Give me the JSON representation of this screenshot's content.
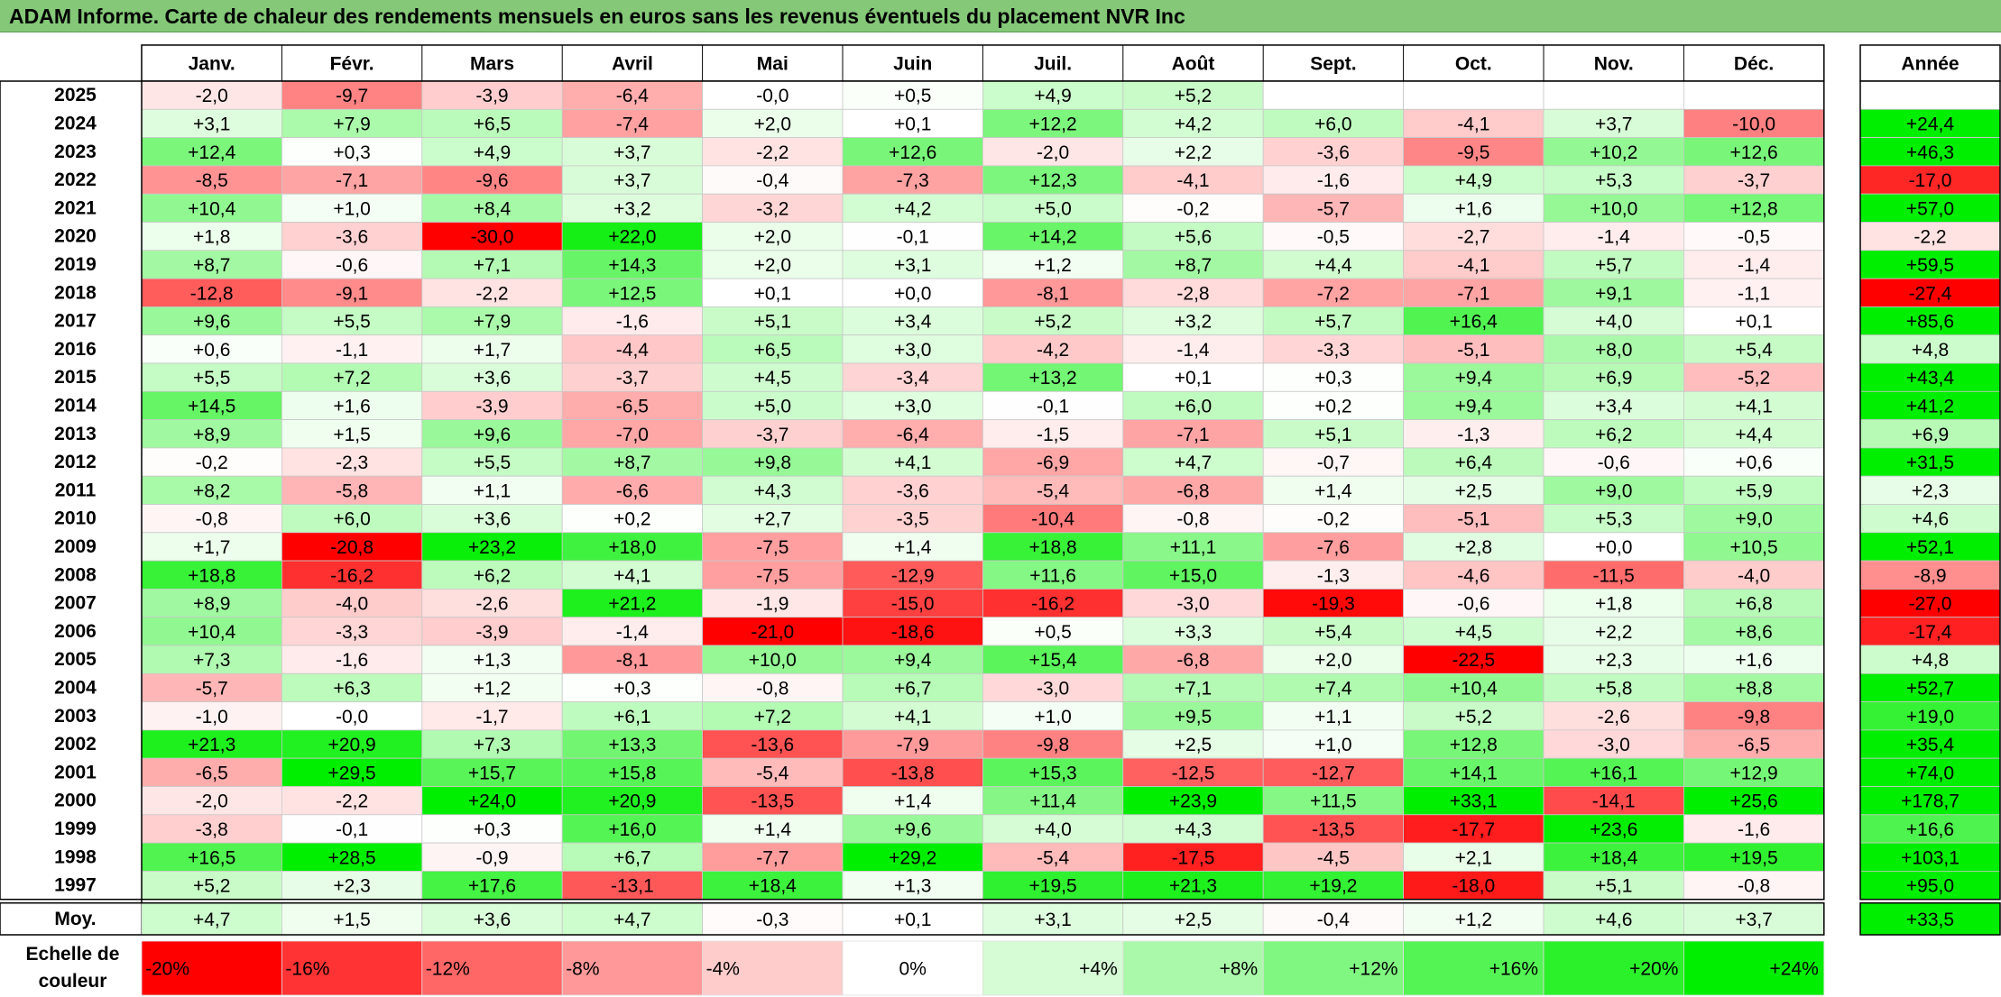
{
  "title": "ADAM Informe. Carte de chaleur des rendements mensuels en euros sans les revenus éventuels du placement NVR Inc",
  "chart_data": {
    "type": "heatmap",
    "columns": [
      "Janv.",
      "Févr.",
      "Mars",
      "Avril",
      "Mai",
      "Juin",
      "Juil.",
      "Août",
      "Sept.",
      "Oct.",
      "Nov.",
      "Déc."
    ],
    "year_column_label": "Année",
    "average_row_label": "Moy.",
    "rows": [
      {
        "year": "2025",
        "values": [
          "-2,0",
          "-9,7",
          "-3,9",
          "-6,4",
          "-0,0",
          "+0,5",
          "+4,9",
          "+5,2",
          "",
          "",
          "",
          ""
        ],
        "annual": ""
      },
      {
        "year": "2024",
        "values": [
          "+3,1",
          "+7,9",
          "+6,5",
          "-7,4",
          "+2,0",
          "+0,1",
          "+12,2",
          "+4,2",
          "+6,0",
          "-4,1",
          "+3,7",
          "-10,0"
        ],
        "annual": "+24,4"
      },
      {
        "year": "2023",
        "values": [
          "+12,4",
          "+0,3",
          "+4,9",
          "+3,7",
          "-2,2",
          "+12,6",
          "-2,0",
          "+2,2",
          "-3,6",
          "-9,5",
          "+10,2",
          "+12,6"
        ],
        "annual": "+46,3"
      },
      {
        "year": "2022",
        "values": [
          "-8,5",
          "-7,1",
          "-9,6",
          "+3,7",
          "-0,4",
          "-7,3",
          "+12,3",
          "-4,1",
          "-1,6",
          "+4,9",
          "+5,3",
          "-3,7"
        ],
        "annual": "-17,0"
      },
      {
        "year": "2021",
        "values": [
          "+10,4",
          "+1,0",
          "+8,4",
          "+3,2",
          "-3,2",
          "+4,2",
          "+5,0",
          "-0,2",
          "-5,7",
          "+1,6",
          "+10,0",
          "+12,8"
        ],
        "annual": "+57,0"
      },
      {
        "year": "2020",
        "values": [
          "+1,8",
          "-3,6",
          "-30,0",
          "+22,0",
          "+2,0",
          "-0,1",
          "+14,2",
          "+5,6",
          "-0,5",
          "-2,7",
          "-1,4",
          "-0,5"
        ],
        "annual": "-2,2"
      },
      {
        "year": "2019",
        "values": [
          "+8,7",
          "-0,6",
          "+7,1",
          "+14,3",
          "+2,0",
          "+3,1",
          "+1,2",
          "+8,7",
          "+4,4",
          "-4,1",
          "+5,7",
          "-1,4"
        ],
        "annual": "+59,5"
      },
      {
        "year": "2018",
        "values": [
          "-12,8",
          "-9,1",
          "-2,2",
          "+12,5",
          "+0,1",
          "+0,0",
          "-8,1",
          "-2,8",
          "-7,2",
          "-7,1",
          "+9,1",
          "-1,1"
        ],
        "annual": "-27,4"
      },
      {
        "year": "2017",
        "values": [
          "+9,6",
          "+5,5",
          "+7,9",
          "-1,6",
          "+5,1",
          "+3,4",
          "+5,2",
          "+3,2",
          "+5,7",
          "+16,4",
          "+4,0",
          "+0,1"
        ],
        "annual": "+85,6"
      },
      {
        "year": "2016",
        "values": [
          "+0,6",
          "-1,1",
          "+1,7",
          "-4,4",
          "+6,5",
          "+3,0",
          "-4,2",
          "-1,4",
          "-3,3",
          "-5,1",
          "+8,0",
          "+5,4"
        ],
        "annual": "+4,8"
      },
      {
        "year": "2015",
        "values": [
          "+5,5",
          "+7,2",
          "+3,6",
          "-3,7",
          "+4,5",
          "-3,4",
          "+13,2",
          "+0,1",
          "+0,3",
          "+9,4",
          "+6,9",
          "-5,2"
        ],
        "annual": "+43,4"
      },
      {
        "year": "2014",
        "values": [
          "+14,5",
          "+1,6",
          "-3,9",
          "-6,5",
          "+5,0",
          "+3,0",
          "-0,1",
          "+6,0",
          "+0,2",
          "+9,4",
          "+3,4",
          "+4,1"
        ],
        "annual": "+41,2"
      },
      {
        "year": "2013",
        "values": [
          "+8,9",
          "+1,5",
          "+9,6",
          "-7,0",
          "-3,7",
          "-6,4",
          "-1,5",
          "-7,1",
          "+5,1",
          "-1,3",
          "+6,2",
          "+4,4"
        ],
        "annual": "+6,9"
      },
      {
        "year": "2012",
        "values": [
          "-0,2",
          "-2,3",
          "+5,5",
          "+8,7",
          "+9,8",
          "+4,1",
          "-6,9",
          "+4,7",
          "-0,7",
          "+6,4",
          "-0,6",
          "+0,6"
        ],
        "annual": "+31,5"
      },
      {
        "year": "2011",
        "values": [
          "+8,2",
          "-5,8",
          "+1,1",
          "-6,6",
          "+4,3",
          "-3,6",
          "-5,4",
          "-6,8",
          "+1,4",
          "+2,5",
          "+9,0",
          "+5,9"
        ],
        "annual": "+2,3"
      },
      {
        "year": "2010",
        "values": [
          "-0,8",
          "+6,0",
          "+3,6",
          "+0,2",
          "+2,7",
          "-3,5",
          "-10,4",
          "-0,8",
          "-0,2",
          "-5,1",
          "+5,3",
          "+9,0"
        ],
        "annual": "+4,6"
      },
      {
        "year": "2009",
        "values": [
          "+1,7",
          "-20,8",
          "+23,2",
          "+18,0",
          "-7,5",
          "+1,4",
          "+18,8",
          "+11,1",
          "-7,6",
          "+2,8",
          "+0,0",
          "+10,5"
        ],
        "annual": "+52,1"
      },
      {
        "year": "2008",
        "values": [
          "+18,8",
          "-16,2",
          "+6,2",
          "+4,1",
          "-7,5",
          "-12,9",
          "+11,6",
          "+15,0",
          "-1,3",
          "-4,6",
          "-11,5",
          "-4,0"
        ],
        "annual": "-8,9"
      },
      {
        "year": "2007",
        "values": [
          "+8,9",
          "-4,0",
          "-2,6",
          "+21,2",
          "-1,9",
          "-15,0",
          "-16,2",
          "-3,0",
          "-19,3",
          "-0,6",
          "+1,8",
          "+6,8"
        ],
        "annual": "-27,0"
      },
      {
        "year": "2006",
        "values": [
          "+10,4",
          "-3,3",
          "-3,9",
          "-1,4",
          "-21,0",
          "-18,6",
          "+0,5",
          "+3,3",
          "+5,4",
          "+4,5",
          "+2,2",
          "+8,6"
        ],
        "annual": "-17,4"
      },
      {
        "year": "2005",
        "values": [
          "+7,3",
          "-1,6",
          "+1,3",
          "-8,1",
          "+10,0",
          "+9,4",
          "+15,4",
          "-6,8",
          "+2,0",
          "-22,5",
          "+2,3",
          "+1,6"
        ],
        "annual": "+4,8"
      },
      {
        "year": "2004",
        "values": [
          "-5,7",
          "+6,3",
          "+1,2",
          "+0,3",
          "-0,8",
          "+6,7",
          "-3,0",
          "+7,1",
          "+7,4",
          "+10,4",
          "+5,8",
          "+8,8"
        ],
        "annual": "+52,7"
      },
      {
        "year": "2003",
        "values": [
          "-1,0",
          "-0,0",
          "-1,7",
          "+6,1",
          "+7,2",
          "+4,1",
          "+1,0",
          "+9,5",
          "+1,1",
          "+5,2",
          "-2,6",
          "-9,8"
        ],
        "annual": "+19,0"
      },
      {
        "year": "2002",
        "values": [
          "+21,3",
          "+20,9",
          "+7,3",
          "+13,3",
          "-13,6",
          "-7,9",
          "-9,8",
          "+2,5",
          "+1,0",
          "+12,8",
          "-3,0",
          "-6,5"
        ],
        "annual": "+35,4"
      },
      {
        "year": "2001",
        "values": [
          "-6,5",
          "+29,5",
          "+15,7",
          "+15,8",
          "-5,4",
          "-13,8",
          "+15,3",
          "-12,5",
          "-12,7",
          "+14,1",
          "+16,1",
          "+12,9"
        ],
        "annual": "+74,0"
      },
      {
        "year": "2000",
        "values": [
          "-2,0",
          "-2,2",
          "+24,0",
          "+20,9",
          "-13,5",
          "+1,4",
          "+11,4",
          "+23,9",
          "+11,5",
          "+33,1",
          "-14,1",
          "+25,6"
        ],
        "annual": "+178,7"
      },
      {
        "year": "1999",
        "values": [
          "-3,8",
          "-0,1",
          "+0,3",
          "+16,0",
          "+1,4",
          "+9,6",
          "+4,0",
          "+4,3",
          "-13,5",
          "-17,7",
          "+23,6",
          "-1,6"
        ],
        "annual": "+16,6"
      },
      {
        "year": "1998",
        "values": [
          "+16,5",
          "+28,5",
          "-0,9",
          "+6,7",
          "-7,7",
          "+29,2",
          "-5,4",
          "-17,5",
          "-4,5",
          "+2,1",
          "+18,4",
          "+19,5"
        ],
        "annual": "+103,1"
      },
      {
        "year": "1997",
        "values": [
          "+5,2",
          "+2,3",
          "+17,6",
          "-13,1",
          "+18,4",
          "+1,3",
          "+19,5",
          "+21,3",
          "+19,2",
          "-18,0",
          "+5,1",
          "-0,8"
        ],
        "annual": "+95,0"
      }
    ],
    "averages": [
      "+4,7",
      "+1,5",
      "+3,6",
      "+4,7",
      "-0,3",
      "+0,1",
      "+3,1",
      "+2,5",
      "-0,4",
      "+1,2",
      "+4,6",
      "+3,7"
    ],
    "average_annual": "+33,5",
    "scale_label": "Echelle de couleur",
    "scale": [
      "-20%",
      "-16%",
      "-12%",
      "-8%",
      "-4%",
      "0%",
      "+4%",
      "+8%",
      "+12%",
      "+16%",
      "+20%",
      "+24%"
    ],
    "color_range": [
      -20,
      24
    ],
    "colors": {
      "negative": "#ff0000",
      "neutral": "#ffffff",
      "positive": "#00ee00",
      "title_bar": "#84c878"
    }
  }
}
